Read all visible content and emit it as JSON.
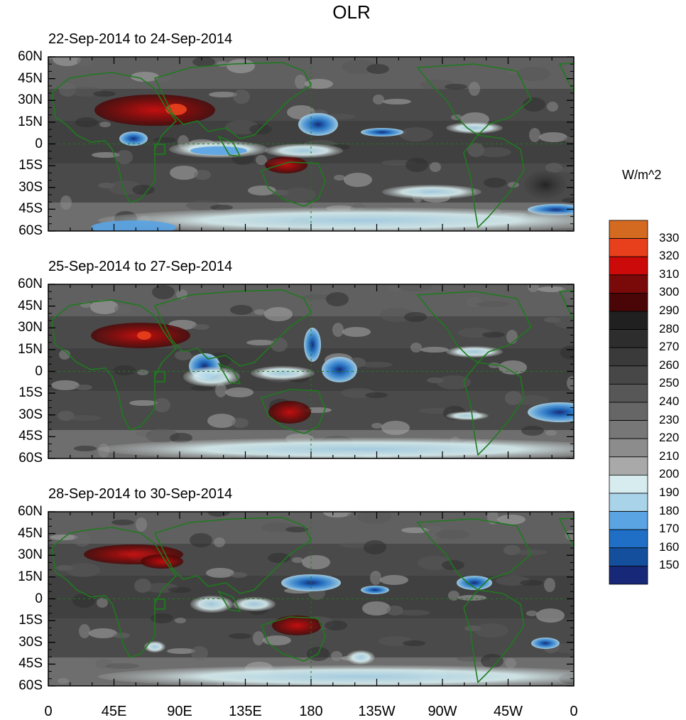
{
  "title": "OLR",
  "units": "W/m^2",
  "panels": [
    {
      "label": "22-Sep-2014 to 24-Sep-2014"
    },
    {
      "label": "25-Sep-2014 to 27-Sep-2014"
    },
    {
      "label": "28-Sep-2014 to 30-Sep-2014"
    }
  ],
  "lat_ticks": [
    "60N",
    "45N",
    "30N",
    "15N",
    "0",
    "15S",
    "30S",
    "45S",
    "60S"
  ],
  "lon_ticks": [
    "0",
    "45E",
    "90E",
    "135E",
    "180",
    "135W",
    "90W",
    "45W",
    "0"
  ],
  "colorbar": {
    "levels": [
      "330",
      "320",
      "310",
      "300",
      "290",
      "280",
      "270",
      "260",
      "250",
      "240",
      "230",
      "220",
      "210",
      "200",
      "190",
      "180",
      "170",
      "160",
      "150"
    ],
    "colors": [
      "#d46a20",
      "#e8401c",
      "#cc0a0a",
      "#7a0a0a",
      "#4a0606",
      "#202020",
      "#2d2d2d",
      "#3a3a3a",
      "#474747",
      "#575757",
      "#666666",
      "#777777",
      "#8c8c8c",
      "#a9a9a9",
      "#d6ecee",
      "#a9d3e8",
      "#5aa4e4",
      "#1f6fc6",
      "#134f9c",
      "#172878"
    ]
  },
  "colors": {
    "coastline": "#1e7a1e",
    "equator": "#1e7a1e"
  }
}
